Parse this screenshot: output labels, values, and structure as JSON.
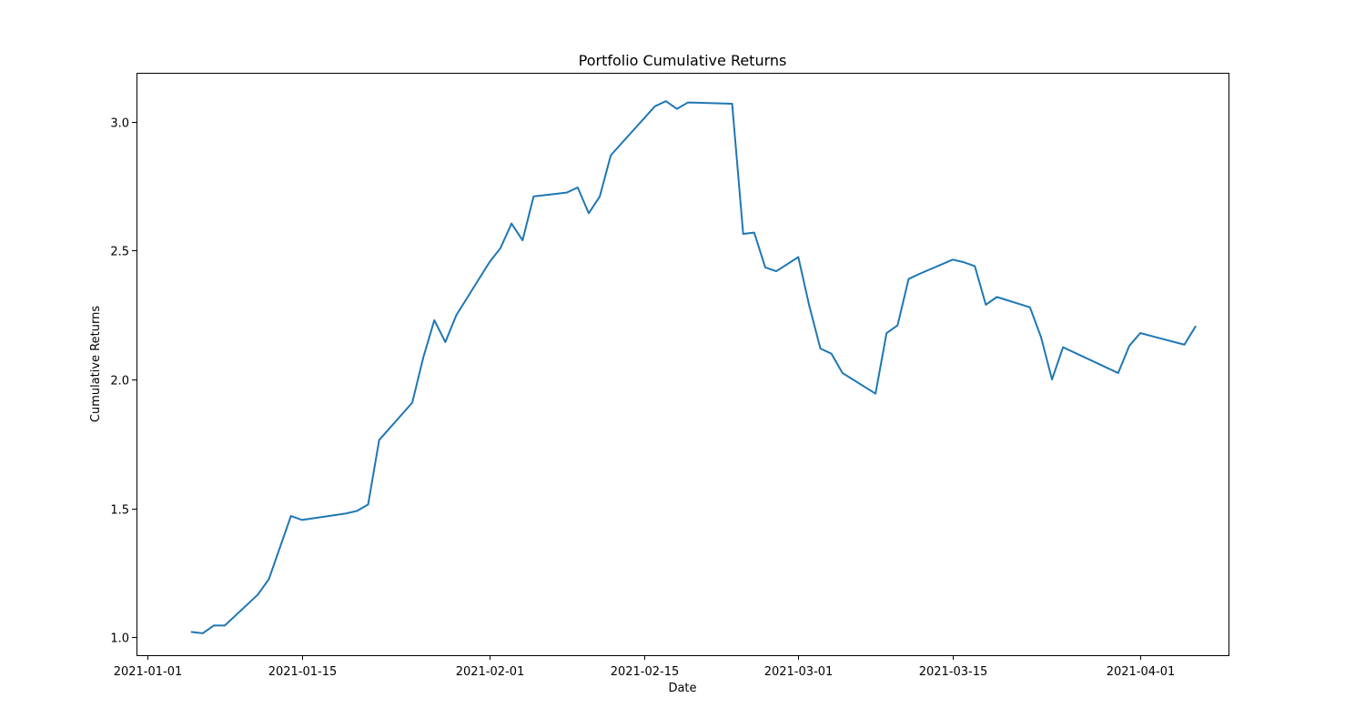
{
  "chart_data": {
    "type": "line",
    "title": "Portfolio Cumulative Returns",
    "xlabel": "Date",
    "ylabel": "Cumulative Returns",
    "x_axis_type": "date",
    "xlim": [
      "2020-12-31",
      "2021-04-09"
    ],
    "ylim": [
      0.93,
      3.19
    ],
    "grid": false,
    "legend": "none",
    "x_ticks": [
      {
        "value": "2021-01-01",
        "label": "2021-01-01"
      },
      {
        "value": "2021-01-15",
        "label": "2021-01-15"
      },
      {
        "value": "2021-02-01",
        "label": "2021-02-01"
      },
      {
        "value": "2021-02-15",
        "label": "2021-02-15"
      },
      {
        "value": "2021-03-01",
        "label": "2021-03-01"
      },
      {
        "value": "2021-03-15",
        "label": "2021-03-15"
      },
      {
        "value": "2021-04-01",
        "label": "2021-04-01"
      }
    ],
    "y_ticks": [
      {
        "value": 1.0,
        "label": "1.0"
      },
      {
        "value": 1.5,
        "label": "1.5"
      },
      {
        "value": 2.0,
        "label": "2.0"
      },
      {
        "value": 2.5,
        "label": "2.5"
      },
      {
        "value": 3.0,
        "label": "3.0"
      }
    ],
    "series": [
      {
        "color": "#1f77b4",
        "x": [
          "2021-01-05",
          "2021-01-06",
          "2021-01-07",
          "2021-01-08",
          "2021-01-11",
          "2021-01-12",
          "2021-01-14",
          "2021-01-15",
          "2021-01-19",
          "2021-01-20",
          "2021-01-21",
          "2021-01-22",
          "2021-01-25",
          "2021-01-26",
          "2021-01-27",
          "2021-01-28",
          "2021-01-29",
          "2021-02-01",
          "2021-02-02",
          "2021-02-03",
          "2021-02-04",
          "2021-02-05",
          "2021-02-08",
          "2021-02-09",
          "2021-02-10",
          "2021-02-11",
          "2021-02-12",
          "2021-02-16",
          "2021-02-17",
          "2021-02-18",
          "2021-02-19",
          "2021-02-23",
          "2021-02-24",
          "2021-02-25",
          "2021-02-26",
          "2021-02-27",
          "2021-03-01",
          "2021-03-02",
          "2021-03-03",
          "2021-03-04",
          "2021-03-05",
          "2021-03-08",
          "2021-03-09",
          "2021-03-10",
          "2021-03-11",
          "2021-03-12",
          "2021-03-15",
          "2021-03-16",
          "2021-03-17",
          "2021-03-18",
          "2021-03-19",
          "2021-03-22",
          "2021-03-23",
          "2021-03-24",
          "2021-03-25",
          "2021-03-30",
          "2021-03-31",
          "2021-04-01",
          "2021-04-05",
          "2021-04-06"
        ],
        "y": [
          1.02,
          1.015,
          1.045,
          1.045,
          1.165,
          1.225,
          1.47,
          1.455,
          1.48,
          1.49,
          1.515,
          1.765,
          1.91,
          2.085,
          2.23,
          2.145,
          2.25,
          2.455,
          2.51,
          2.605,
          2.54,
          2.71,
          2.725,
          2.745,
          2.645,
          2.71,
          2.87,
          3.06,
          3.08,
          3.05,
          3.075,
          3.07,
          2.565,
          2.57,
          2.435,
          2.42,
          2.475,
          2.285,
          2.12,
          2.1,
          2.025,
          1.945,
          2.18,
          2.21,
          2.39,
          2.41,
          2.465,
          2.455,
          2.44,
          2.29,
          2.32,
          2.28,
          2.165,
          2.0,
          2.125,
          2.025,
          2.13,
          2.18,
          2.135,
          2.205
        ]
      }
    ]
  }
}
